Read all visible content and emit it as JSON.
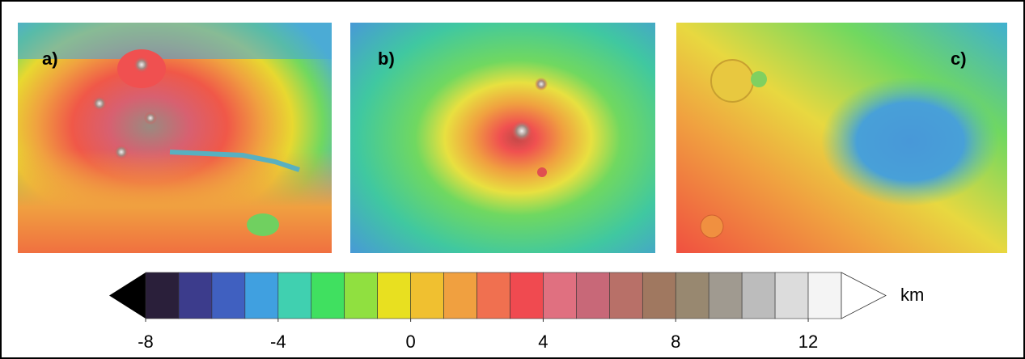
{
  "panels": [
    {
      "label": "a)"
    },
    {
      "label": "b)"
    },
    {
      "label": "c)"
    }
  ],
  "colorbar": {
    "xlim": [
      -8,
      13
    ],
    "ticks": [
      -8,
      -4,
      0,
      4,
      8,
      12
    ],
    "unit": "km"
  }
}
